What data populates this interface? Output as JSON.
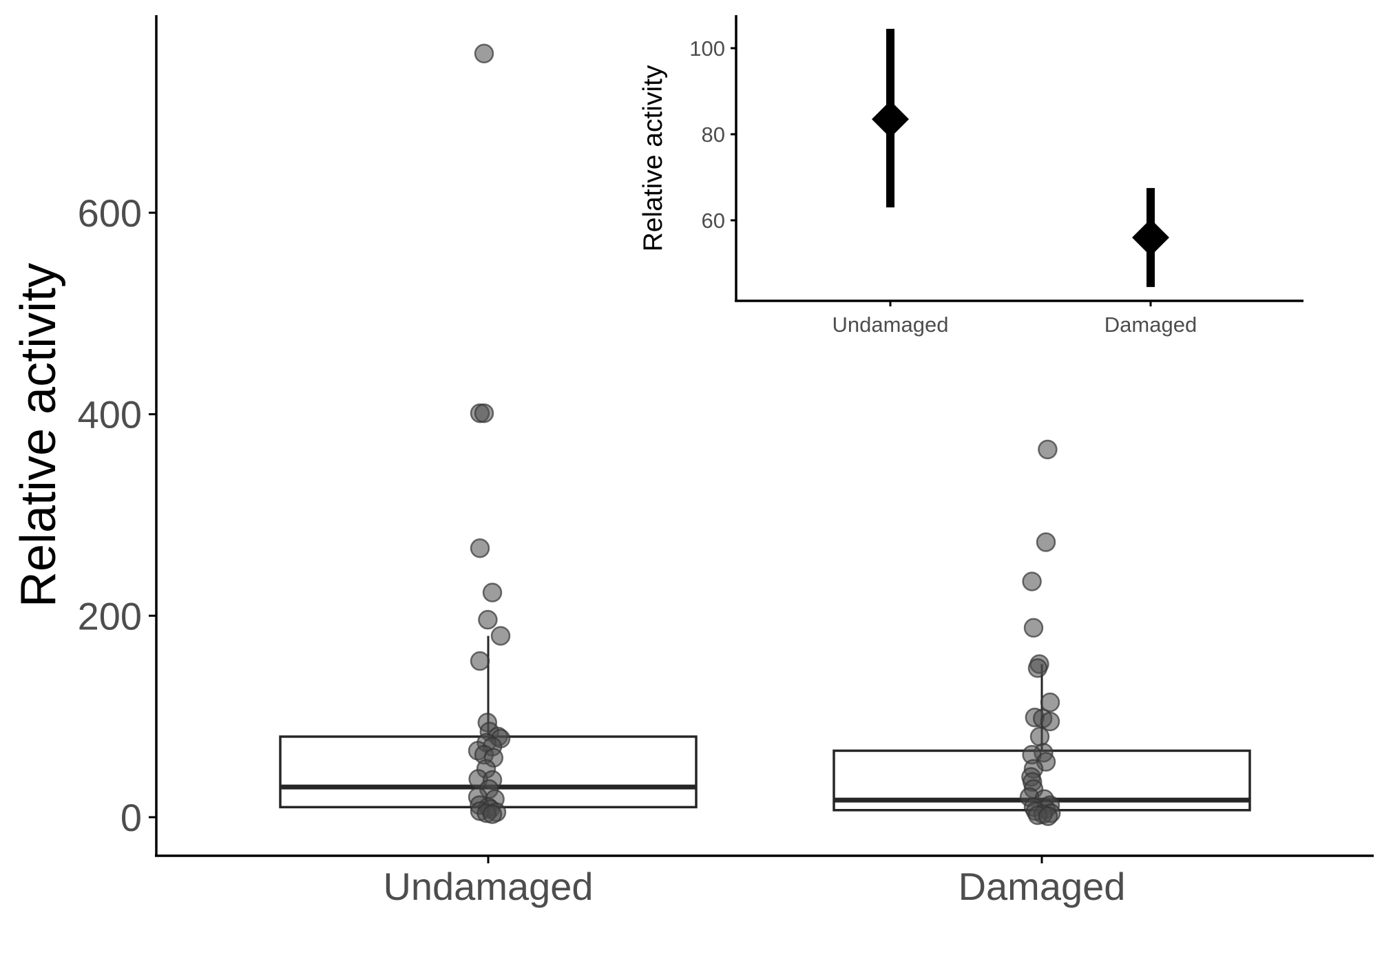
{
  "chart_data": [
    {
      "type": "box",
      "ylabel": "Relative activity",
      "xlabel": "",
      "categories": [
        "Undamaged",
        "Damaged"
      ],
      "ylim": [
        -30,
        795
      ],
      "yticks": [
        0,
        200,
        400,
        600
      ],
      "grid": false,
      "boxes": [
        {
          "category": "Undamaged",
          "q1": 10,
          "median": 30,
          "q3": 80,
          "whisker_low": 0,
          "whisker_high": 180
        },
        {
          "category": "Damaged",
          "q1": 7,
          "median": 17,
          "q3": 66,
          "whisker_low": 0,
          "whisker_high": 152
        }
      ],
      "points": [
        {
          "category": "Undamaged",
          "values": [
            {
              "x": -0.01,
              "y": 758
            },
            {
              "x": -0.02,
              "y": 401
            },
            {
              "x": -0.01,
              "y": 401
            },
            {
              "x": -0.02,
              "y": 267
            },
            {
              "x": 0.01,
              "y": 223
            },
            {
              "x": -0.001,
              "y": 196
            },
            {
              "x": 0.03,
              "y": 180
            },
            {
              "x": -0.02,
              "y": 155
            },
            {
              "x": -0.002,
              "y": 94
            },
            {
              "x": 0.003,
              "y": 85
            },
            {
              "x": 0.024,
              "y": 80
            },
            {
              "x": 0.03,
              "y": 78
            },
            {
              "x": -0.004,
              "y": 74
            },
            {
              "x": 0.01,
              "y": 70
            },
            {
              "x": -0.025,
              "y": 66
            },
            {
              "x": -0.01,
              "y": 62
            },
            {
              "x": 0.013,
              "y": 59
            },
            {
              "x": -0.005,
              "y": 48
            },
            {
              "x": -0.024,
              "y": 38
            },
            {
              "x": 0.01,
              "y": 37
            },
            {
              "x": 0.002,
              "y": 28
            },
            {
              "x": -0.025,
              "y": 20
            },
            {
              "x": 0.016,
              "y": 18
            },
            {
              "x": -0.021,
              "y": 12
            },
            {
              "x": 0.0,
              "y": 10
            },
            {
              "x": 0.005,
              "y": 8
            },
            {
              "x": -0.02,
              "y": 6
            },
            {
              "x": 0.02,
              "y": 5
            },
            {
              "x": -0.004,
              "y": 4
            },
            {
              "x": 0.01,
              "y": 3
            }
          ]
        },
        {
          "category": "Damaged",
          "values": [
            {
              "x": 0.014,
              "y": 365
            },
            {
              "x": 0.01,
              "y": 273
            },
            {
              "x": -0.024,
              "y": 234
            },
            {
              "x": -0.02,
              "y": 188
            },
            {
              "x": -0.006,
              "y": 152
            },
            {
              "x": -0.01,
              "y": 148
            },
            {
              "x": 0.02,
              "y": 114
            },
            {
              "x": -0.017,
              "y": 99
            },
            {
              "x": 0.002,
              "y": 98
            },
            {
              "x": 0.02,
              "y": 95
            },
            {
              "x": -0.005,
              "y": 80
            },
            {
              "x": 0.004,
              "y": 64
            },
            {
              "x": -0.024,
              "y": 62
            },
            {
              "x": 0.01,
              "y": 55
            },
            {
              "x": -0.02,
              "y": 48
            },
            {
              "x": -0.026,
              "y": 40
            },
            {
              "x": -0.023,
              "y": 35
            },
            {
              "x": -0.02,
              "y": 28
            },
            {
              "x": -0.03,
              "y": 20
            },
            {
              "x": 0.006,
              "y": 18
            },
            {
              "x": 0.02,
              "y": 12
            },
            {
              "x": -0.02,
              "y": 10
            },
            {
              "x": 0.01,
              "y": 8
            },
            {
              "x": -0.015,
              "y": 6
            },
            {
              "x": 0.022,
              "y": 4
            },
            {
              "x": 0.003,
              "y": 3
            },
            {
              "x": -0.01,
              "y": 2
            },
            {
              "x": 0.015,
              "y": 1
            }
          ]
        }
      ]
    },
    {
      "type": "pointrange",
      "ylabel": "Relative activity",
      "xlabel": "",
      "categories": [
        "Undamaged",
        "Damaged"
      ],
      "ylim": [
        42,
        107
      ],
      "yticks": [
        60,
        80,
        100
      ],
      "grid": false,
      "series": [
        {
          "category": "Undamaged",
          "mean": 83.5,
          "low": 63,
          "high": 104.5
        },
        {
          "category": "Damaged",
          "mean": 56,
          "low": 44.5,
          "high": 67.5
        }
      ]
    }
  ],
  "colors": {
    "axis": "#000000",
    "box": "#262626",
    "point_fill": "rgba(77,77,77,0.55)",
    "point_stroke": "rgba(51,51,51,0.7)",
    "tick_text": "#4d4d4d"
  }
}
